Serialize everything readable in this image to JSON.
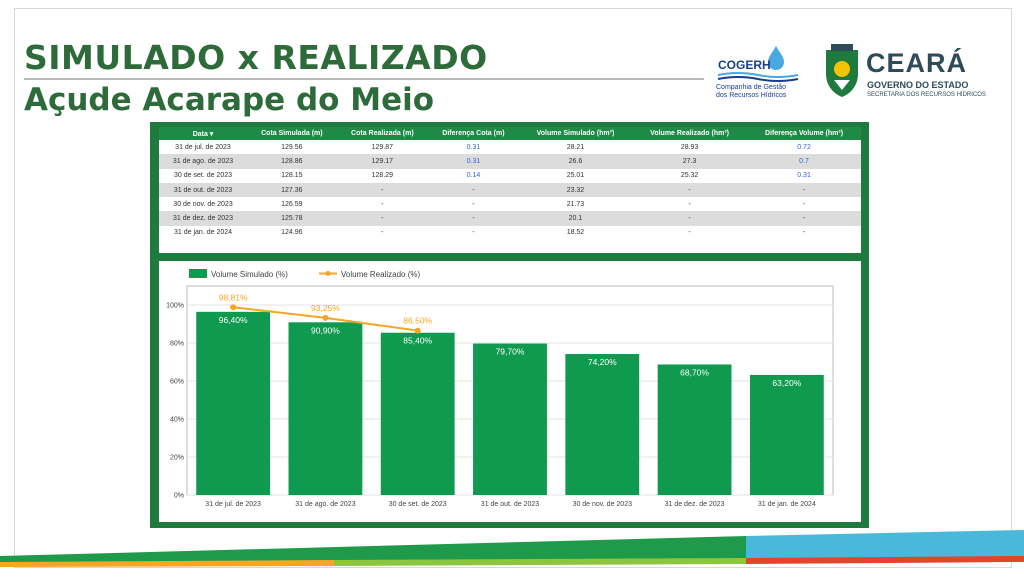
{
  "header": {
    "title_line1": "SIMULADO x REALIZADO",
    "title_line2": "Açude Acarape do Meio"
  },
  "logos": {
    "cogerh_name": "COGERH",
    "cogerh_sub_line1": "Companhia de Gestão",
    "cogerh_sub_line2": "dos Recursos Hídricos",
    "ceara_name": "CEARÁ",
    "ceara_gov": "GOVERNO DO ESTADO",
    "ceara_sec": "SECRETARIA DOS RECURSOS HÍDRICOS"
  },
  "table": {
    "headers": [
      "Data ▾",
      "Cota Simulada (m)",
      "Cota Realizada (m)",
      "Diferença Cota (m)",
      "Volume Simulado (hm³)",
      "Volume Realizado (hm³)",
      "Diferença Volume (hm³)"
    ],
    "rows": [
      [
        "31 de jul. de 2023",
        "129.56",
        "129.87",
        "0.31",
        "28.21",
        "28.93",
        "0.72"
      ],
      [
        "31 de ago. de 2023",
        "128.86",
        "129.17",
        "0.31",
        "26.6",
        "27.3",
        "0.7"
      ],
      [
        "30 de set. de 2023",
        "128.15",
        "128.29",
        "0.14",
        "25.01",
        "25.32",
        "0.31"
      ],
      [
        "31 de out. de 2023",
        "127.36",
        "-",
        "-",
        "23.32",
        "-",
        "-"
      ],
      [
        "30 de nov. de 2023",
        "126.59",
        "-",
        "-",
        "21.73",
        "-",
        "-"
      ],
      [
        "31 de dez. de 2023",
        "125.78",
        "-",
        "-",
        "20.1",
        "-",
        "-"
      ],
      [
        "31 de jan. de 2024",
        "124.96",
        "-",
        "-",
        "18.52",
        "-",
        "-"
      ]
    ]
  },
  "chart_data": {
    "type": "bar",
    "categories": [
      "31 de jul. de 2023",
      "31 de ago. de 2023",
      "30 de set. de 2023",
      "31 de out. de 2023",
      "30 de nov. de 2023",
      "31 de dez. de 2023",
      "31 de jan. de 2024"
    ],
    "series": [
      {
        "name": "Volume Simulado (%)",
        "type": "bar",
        "color": "#0f9a50",
        "values": [
          96.4,
          90.9,
          85.4,
          79.7,
          74.2,
          68.7,
          63.2
        ],
        "labels": [
          "96,40%",
          "90,90%",
          "85,40%",
          "79,70%",
          "74,20%",
          "68,70%",
          "63,20%"
        ]
      },
      {
        "name": "Volume Realizado (%)",
        "type": "line",
        "color": "#f5a623",
        "values": [
          98.81,
          93.25,
          86.5,
          null,
          null,
          null,
          null
        ],
        "labels": [
          "98,81%",
          "93,25%",
          "86,50%",
          "",
          "",
          "",
          ""
        ]
      }
    ],
    "yticks": [
      "0%",
      "20%",
      "40%",
      "60%",
      "80%",
      "100%"
    ],
    "ylim": [
      0,
      110
    ],
    "grid": true,
    "legend": "top-left",
    "title": "",
    "xlabel": "",
    "ylabel": ""
  }
}
